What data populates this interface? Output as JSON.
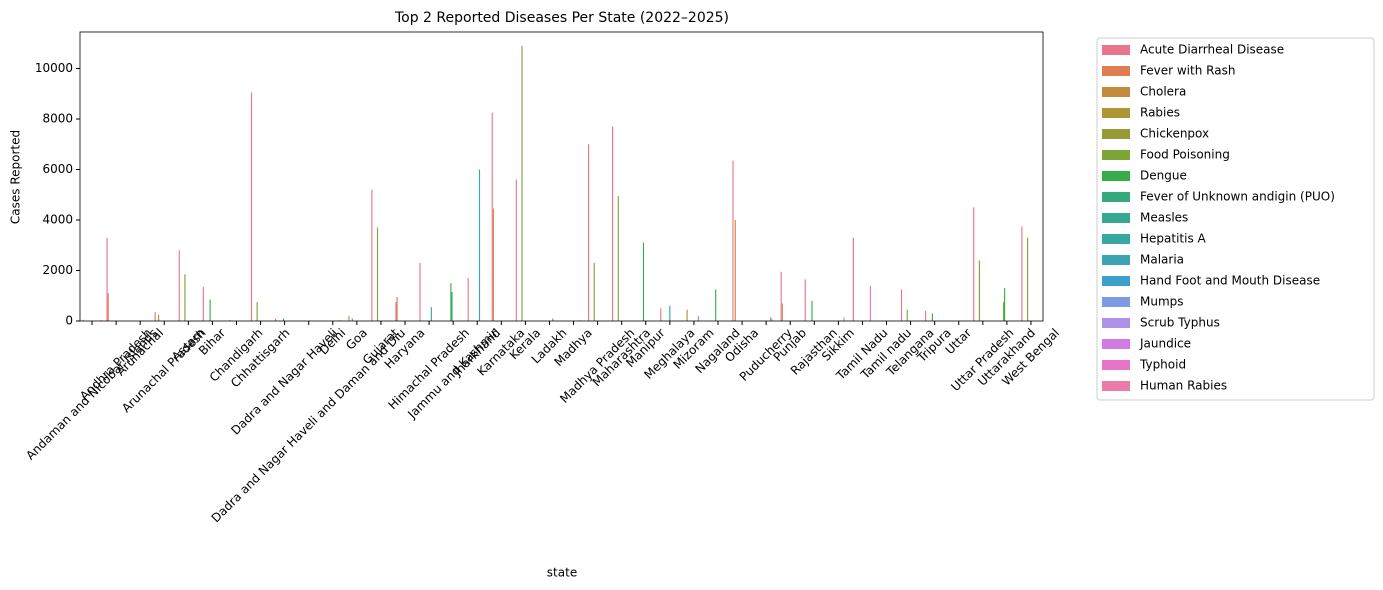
{
  "chart_data": {
    "type": "bar",
    "title": "Top 2 Reported Diseases Per State (2022–2025)",
    "x_label": "state",
    "y_label": "Cases Reported",
    "categories": [
      "Andaman and Nicobar Islands",
      "Andhra Pradesh",
      "Arunachal",
      "Arunachal Pradesh",
      "Assam",
      "Bihar",
      "Chandigarh",
      "Chhattisgarh",
      "Dadra and Nagar Haveli",
      "Dadra and Nagar Haveli and Daman and Diu",
      "Delhi",
      "Goa",
      "Gujarat",
      "Haryana",
      "Himachal Pradesh",
      "Jammu and Kashmir",
      "Jharkhand",
      "Karnataka",
      "Kerala",
      "Ladakh",
      "Madhya",
      "Madhya Pradesh",
      "Maharashtra",
      "Manipur",
      "Meghalaya",
      "Mizoram",
      "Nagaland",
      "Odisha",
      "Puducherry",
      "Punjab",
      "Rajasthan",
      "Sikkim",
      "Tamil Nadu",
      "Tamil nadu",
      "Telangana",
      "Tripura",
      "Uttar",
      "Uttar Pradesh",
      "Uttarakhand",
      "West Bengal"
    ],
    "series": [
      {
        "name": "Acute Diarrheal Disease",
        "color": "#e8768b",
        "values": [
          50,
          3300,
          null,
          350,
          2800,
          1350,
          null,
          9050,
          100,
          null,
          null,
          null,
          5200,
          750,
          2300,
          null,
          1700,
          8250,
          5600,
          null,
          null,
          7000,
          7700,
          null,
          500,
          null,
          null,
          6350,
          null,
          1950,
          1650,
          null,
          3300,
          null,
          1250,
          400,
          null,
          4500,
          null,
          3750
        ]
      },
      {
        "name": "Fever with Rash",
        "color": "#e07d52",
        "values": [
          null,
          1100,
          null,
          null,
          null,
          null,
          null,
          null,
          null,
          null,
          null,
          200,
          null,
          950,
          null,
          null,
          null,
          4450,
          null,
          null,
          null,
          null,
          null,
          null,
          null,
          null,
          null,
          null,
          null,
          700,
          null,
          null,
          null,
          null,
          null,
          null,
          null,
          null,
          null,
          null
        ]
      },
      {
        "name": "Cholera",
        "color": "#c28c3c",
        "values": [
          null,
          null,
          null,
          null,
          null,
          null,
          30,
          null,
          null,
          null,
          null,
          null,
          null,
          null,
          null,
          null,
          null,
          null,
          null,
          null,
          null,
          null,
          null,
          null,
          null,
          450,
          null,
          4000,
          null,
          null,
          null,
          null,
          null,
          null,
          null,
          null,
          null,
          null,
          null,
          null
        ]
      },
      {
        "name": "Rabies",
        "color": "#ad9634",
        "values": [
          null,
          null,
          null,
          250,
          null,
          null,
          null,
          null,
          null,
          null,
          null,
          null,
          null,
          null,
          null,
          null,
          null,
          null,
          null,
          null,
          null,
          null,
          null,
          null,
          null,
          null,
          null,
          null,
          null,
          null,
          null,
          null,
          null,
          null,
          null,
          null,
          null,
          null,
          null,
          null
        ]
      },
      {
        "name": "Chickenpox",
        "color": "#969b35",
        "values": [
          null,
          null,
          null,
          null,
          null,
          null,
          null,
          null,
          null,
          null,
          null,
          100,
          null,
          null,
          null,
          null,
          null,
          null,
          null,
          null,
          null,
          null,
          null,
          null,
          null,
          null,
          null,
          null,
          null,
          null,
          null,
          null,
          null,
          null,
          null,
          null,
          null,
          null,
          null,
          null
        ]
      },
      {
        "name": "Food Poisoning",
        "color": "#7da538",
        "values": [
          null,
          null,
          null,
          null,
          1850,
          null,
          null,
          750,
          null,
          null,
          null,
          null,
          3700,
          null,
          null,
          null,
          null,
          null,
          10900,
          null,
          null,
          2300,
          4950,
          null,
          null,
          null,
          null,
          null,
          null,
          null,
          null,
          null,
          null,
          null,
          450,
          null,
          null,
          2400,
          750,
          3300
        ]
      },
      {
        "name": "Dengue",
        "color": "#36ad48",
        "values": [
          null,
          null,
          null,
          null,
          null,
          850,
          null,
          null,
          null,
          null,
          null,
          null,
          null,
          null,
          null,
          1500,
          null,
          null,
          null,
          null,
          null,
          null,
          null,
          3100,
          null,
          null,
          1250,
          null,
          null,
          null,
          800,
          null,
          null,
          null,
          null,
          300,
          null,
          null,
          1300,
          null
        ]
      },
      {
        "name": "Fever of Unknown andigin (PUO)",
        "color": "#37aa7d",
        "values": [
          null,
          null,
          null,
          null,
          null,
          null,
          null,
          null,
          100,
          null,
          null,
          null,
          null,
          null,
          null,
          1150,
          null,
          null,
          null,
          null,
          null,
          null,
          null,
          null,
          null,
          null,
          null,
          null,
          null,
          null,
          null,
          null,
          null,
          null,
          null,
          null,
          null,
          null,
          null,
          null
        ]
      },
      {
        "name": "Measles",
        "color": "#38a893",
        "values": [
          null,
          null,
          null,
          null,
          null,
          null,
          null,
          null,
          null,
          null,
          null,
          null,
          null,
          null,
          null,
          null,
          null,
          null,
          null,
          null,
          null,
          null,
          null,
          null,
          600,
          null,
          null,
          null,
          null,
          null,
          null,
          null,
          null,
          null,
          null,
          null,
          null,
          null,
          null,
          null
        ]
      },
      {
        "name": "Hepatitis A",
        "color": "#39a7a3",
        "values": [
          null,
          null,
          20,
          null,
          null,
          null,
          null,
          null,
          null,
          20,
          null,
          null,
          null,
          null,
          null,
          null,
          null,
          null,
          null,
          null,
          null,
          null,
          null,
          null,
          null,
          null,
          null,
          null,
          null,
          null,
          null,
          null,
          null,
          null,
          null,
          null,
          null,
          null,
          null,
          null
        ]
      },
      {
        "name": "Malaria",
        "color": "#3ba4b3",
        "values": [
          null,
          null,
          null,
          null,
          null,
          null,
          null,
          null,
          null,
          null,
          null,
          null,
          null,
          null,
          550,
          null,
          6000,
          null,
          null,
          null,
          null,
          null,
          null,
          null,
          null,
          null,
          null,
          null,
          null,
          null,
          null,
          null,
          null,
          null,
          null,
          null,
          null,
          null,
          null,
          null
        ]
      },
      {
        "name": "Hand Foot and Mouth Disease",
        "color": "#3e9fcc",
        "values": [
          null,
          null,
          null,
          null,
          null,
          null,
          null,
          null,
          null,
          null,
          null,
          null,
          null,
          null,
          null,
          null,
          null,
          null,
          null,
          100,
          null,
          null,
          null,
          null,
          null,
          null,
          null,
          null,
          null,
          null,
          null,
          null,
          null,
          null,
          null,
          null,
          null,
          null,
          null,
          null
        ]
      },
      {
        "name": "Mumps",
        "color": "#7f9ae5",
        "values": [
          null,
          null,
          null,
          null,
          null,
          null,
          null,
          null,
          null,
          null,
          null,
          null,
          null,
          null,
          null,
          null,
          null,
          null,
          null,
          null,
          null,
          null,
          null,
          null,
          null,
          200,
          null,
          null,
          150,
          null,
          null,
          null,
          null,
          null,
          null,
          null,
          null,
          null,
          null,
          null
        ]
      },
      {
        "name": "Scrub Typhus",
        "color": "#ae92e8",
        "values": [
          null,
          null,
          null,
          null,
          null,
          null,
          null,
          null,
          null,
          null,
          null,
          null,
          null,
          null,
          null,
          null,
          null,
          null,
          null,
          null,
          null,
          null,
          null,
          null,
          null,
          null,
          null,
          null,
          100,
          null,
          null,
          150,
          null,
          null,
          null,
          null,
          null,
          null,
          null,
          null
        ]
      },
      {
        "name": "Jaundice",
        "color": "#d27ae6",
        "values": [
          null,
          null,
          null,
          null,
          null,
          null,
          null,
          null,
          null,
          null,
          30,
          null,
          null,
          null,
          null,
          null,
          null,
          null,
          null,
          null,
          30,
          null,
          null,
          null,
          null,
          null,
          null,
          null,
          null,
          null,
          null,
          null,
          null,
          null,
          null,
          null,
          20,
          null,
          null,
          null
        ]
      },
      {
        "name": "Typhoid",
        "color": "#e674c9",
        "values": [
          null,
          null,
          null,
          null,
          null,
          null,
          null,
          null,
          null,
          null,
          null,
          null,
          null,
          null,
          null,
          null,
          null,
          null,
          null,
          null,
          null,
          null,
          null,
          null,
          null,
          null,
          null,
          null,
          null,
          null,
          null,
          null,
          1400,
          20,
          null,
          null,
          null,
          null,
          null,
          null
        ]
      },
      {
        "name": "Human Rabies",
        "color": "#ea7bab",
        "values": [
          30,
          null,
          null,
          null,
          null,
          null,
          null,
          null,
          null,
          null,
          null,
          null,
          null,
          null,
          null,
          null,
          null,
          null,
          null,
          null,
          null,
          null,
          null,
          null,
          null,
          null,
          null,
          null,
          null,
          null,
          null,
          null,
          null,
          null,
          null,
          null,
          null,
          null,
          null,
          null
        ]
      }
    ],
    "ylim": [
      0,
      11445
    ],
    "yticks": [
      0,
      2000,
      4000,
      6000,
      8000,
      10000
    ],
    "legend": "outside right"
  }
}
